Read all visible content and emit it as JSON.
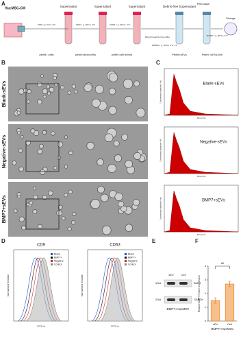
{
  "figure": {
    "panel_letters": [
      "A",
      "B",
      "C",
      "D",
      "E",
      "F"
    ],
    "workflow": {
      "source": "HucMSC-CM",
      "supernatants": [
        "Supernatant",
        "Supernatant",
        "Supernatant",
        "Debris-free Supernatant"
      ],
      "conditions": [
        "1000 × g, 5min, 4°C",
        "2000 × g, 10min, 4°C",
        "10000 × g, 30min, 4°C",
        "Filter through 0.22 μm filter",
        "100000 × g, 70min, 4°C, ×2",
        "110000 × g, 90min, 4°C"
      ],
      "pellets": [
        "pellet= cells",
        "pellet=dead cells",
        "pellet=cell debris",
        "Pellet=sEVs",
        "Pellet =sEVs-rich"
      ],
      "wash": "PBS wash",
      "storage": "Storage"
    },
    "groups": [
      "Blank-sEVs",
      "Negative-sEVs",
      "BMP7+sEVs"
    ],
    "nta": {
      "y_label": "Concentration (particles / ml)",
      "x_label": "Size (nm)"
    },
    "flow": {
      "markers": [
        "CD9",
        "CD63"
      ],
      "legend": [
        "Blank",
        "BMP7+",
        "Negative",
        "Control"
      ],
      "x_label": "FITC-A",
      "y_label": "Normalized To Mode"
    },
    "blot": {
      "lanes": [
        "sEV",
        "Cell"
      ],
      "proteins": [
        "BMP7",
        "GAPDH"
      ],
      "sizes": [
        "47kd",
        "37kd"
      ],
      "cell": "BMP7+HucMSC"
    }
  },
  "chart_data": {
    "type": "bar",
    "categories": [
      "sEV",
      "Cell"
    ],
    "values": [
      1.5,
      2.7
    ],
    "errors": [
      0.2,
      0.2
    ],
    "color": "#f7c08a",
    "ylim": [
      0,
      4
    ],
    "yticks": [
      0,
      1,
      2,
      3,
      4
    ],
    "y_label": "Relative BMP7 Protein expression",
    "x_label": "BMP7+HucMSC",
    "significance": "**"
  }
}
